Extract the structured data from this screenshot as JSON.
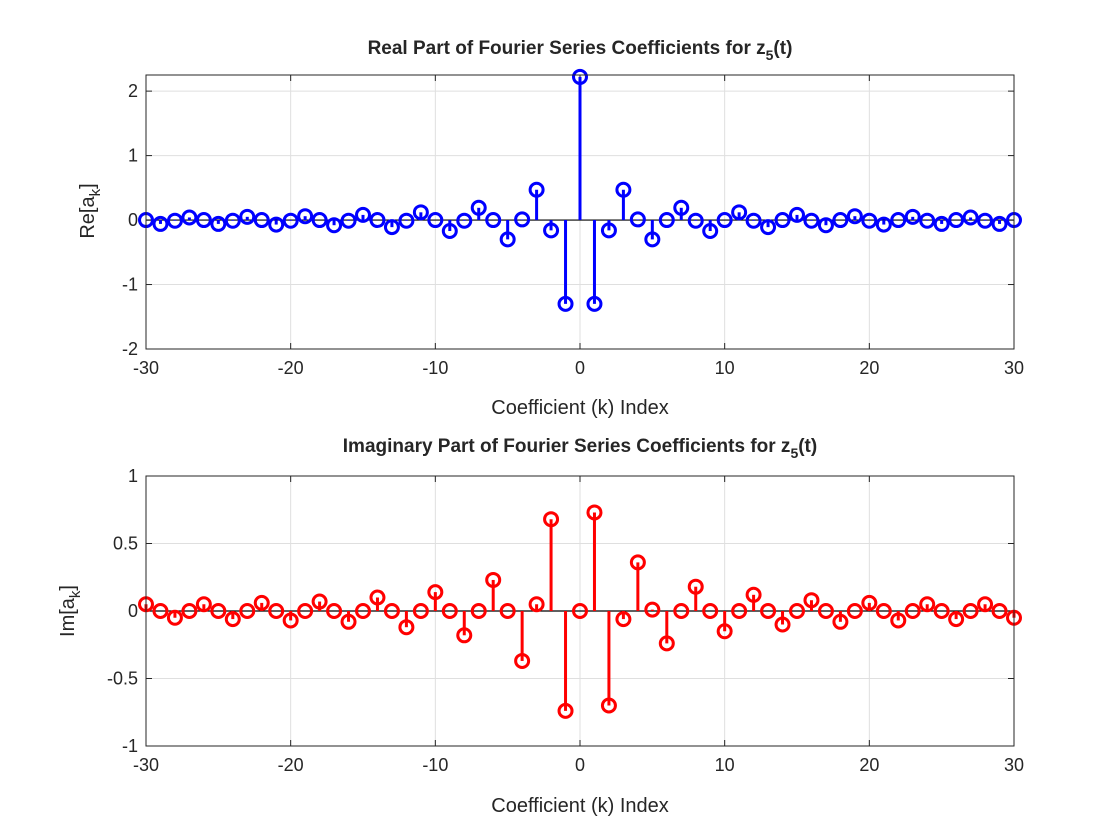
{
  "chart_data": [
    {
      "type": "stem",
      "title": {
        "main": "Real Part of Fourier Series Coefficients for z",
        "sub": "5",
        "tail": "(t)"
      },
      "xlabel": "Coefficient (k) Index",
      "ylabel": {
        "main": "Re[a",
        "sub": "k",
        "tail": "]"
      },
      "xlim": [
        -30,
        30
      ],
      "ylim": [
        -2,
        2.25
      ],
      "xticks": [
        -30,
        -20,
        -10,
        0,
        10,
        20,
        30
      ],
      "yticks": [
        -2,
        -1,
        0,
        1,
        2
      ],
      "grid": true,
      "color": "#0000ff",
      "series": [
        {
          "x": [
            -30,
            -29,
            -28,
            -27,
            -26,
            -25,
            -24,
            -23,
            -22,
            -21,
            -20,
            -19,
            -18,
            -17,
            -16,
            -15,
            -14,
            -13,
            -12,
            -11,
            -10,
            -9,
            -8,
            -7,
            -6,
            -5,
            -4,
            -3,
            -2,
            -1,
            0,
            1,
            2,
            3,
            4,
            5,
            6,
            7,
            8,
            9,
            10,
            11,
            12,
            13,
            14,
            15,
            16,
            17,
            18,
            19,
            20,
            21,
            22,
            23,
            24,
            25,
            26,
            27,
            28,
            29,
            30
          ],
          "values": [
            0.0,
            -0.06,
            -0.01,
            0.04,
            0.0,
            -0.06,
            -0.01,
            0.05,
            0.0,
            -0.07,
            -0.01,
            0.06,
            0.0,
            -0.08,
            -0.01,
            0.08,
            0.0,
            -0.11,
            -0.01,
            0.12,
            0.0,
            -0.17,
            -0.01,
            0.19,
            0.0,
            -0.3,
            0.01,
            0.47,
            -0.16,
            -1.3,
            2.22,
            -1.3,
            -0.16,
            0.47,
            0.01,
            -0.3,
            0.0,
            0.19,
            -0.01,
            -0.17,
            0.0,
            0.12,
            -0.01,
            -0.11,
            0.0,
            0.08,
            -0.01,
            -0.08,
            0.0,
            0.06,
            -0.01,
            -0.07,
            0.0,
            0.05,
            -0.01,
            -0.06,
            0.0,
            0.04,
            -0.01,
            -0.06,
            0.0
          ]
        }
      ]
    },
    {
      "type": "stem",
      "title": {
        "main": "Imaginary Part of Fourier Series Coefficients for z",
        "sub": "5",
        "tail": "(t)"
      },
      "xlabel": "Coefficient (k) Index",
      "ylabel": {
        "main": "Im[a",
        "sub": "k",
        "tail": "]"
      },
      "xlim": [
        -30,
        30
      ],
      "ylim": [
        -1,
        1
      ],
      "xticks": [
        -30,
        -20,
        -10,
        0,
        10,
        20,
        30
      ],
      "yticks": [
        -1,
        -0.5,
        0,
        0.5,
        1
      ],
      "grid": true,
      "color": "#ff0000",
      "series": [
        {
          "x": [
            -30,
            -29,
            -28,
            -27,
            -26,
            -25,
            -24,
            -23,
            -22,
            -21,
            -20,
            -19,
            -18,
            -17,
            -16,
            -15,
            -14,
            -13,
            -12,
            -11,
            -10,
            -9,
            -8,
            -7,
            -6,
            -5,
            -4,
            -3,
            -2,
            -1,
            0,
            1,
            2,
            3,
            4,
            5,
            6,
            7,
            8,
            9,
            10,
            11,
            12,
            13,
            14,
            15,
            16,
            17,
            18,
            19,
            20,
            21,
            22,
            23,
            24,
            25,
            26,
            27,
            28,
            29,
            30
          ],
          "values": [
            0.05,
            0.0,
            -0.05,
            0.0,
            0.05,
            0.0,
            -0.06,
            0.0,
            0.06,
            0.0,
            -0.07,
            0.0,
            0.07,
            0.0,
            -0.08,
            0.0,
            0.1,
            0.0,
            -0.12,
            0.0,
            0.14,
            0.0,
            -0.18,
            0.0,
            0.23,
            0.0,
            -0.37,
            0.05,
            0.68,
            -0.74,
            0.0,
            0.73,
            -0.7,
            -0.06,
            0.36,
            0.01,
            -0.24,
            0.0,
            0.18,
            0.0,
            -0.15,
            0.0,
            0.12,
            0.0,
            -0.1,
            0.0,
            0.08,
            0.0,
            -0.08,
            0.0,
            0.06,
            0.0,
            -0.07,
            0.0,
            0.05,
            0.0,
            -0.06,
            0.0,
            0.05,
            0.0,
            -0.05
          ]
        }
      ]
    }
  ]
}
